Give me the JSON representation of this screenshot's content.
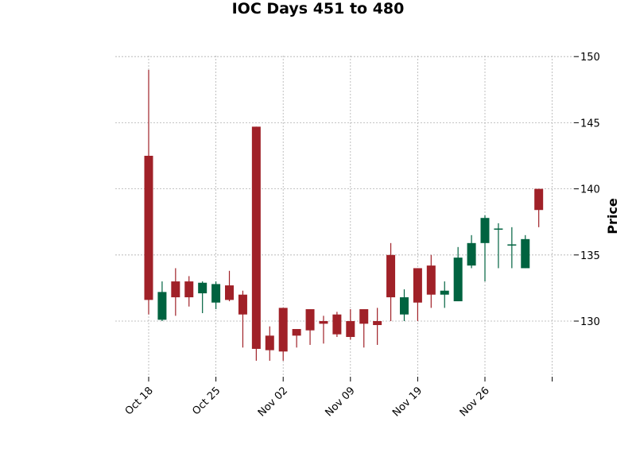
{
  "chart_data": {
    "type": "candlestick",
    "title": "IOC Days 451 to 480",
    "ylabel": "Price",
    "xlabel": "",
    "ylim": [
      126,
      150
    ],
    "yticks": [
      130,
      135,
      140,
      145,
      150
    ],
    "grid": true,
    "colors": {
      "up": "#006340",
      "down": "#a02128",
      "grid": "#b0b0b0"
    },
    "xticks": [
      {
        "index": 0,
        "label": "Oct 18"
      },
      {
        "index": 5,
        "label": "Oct 25"
      },
      {
        "index": 10,
        "label": "Nov 02"
      },
      {
        "index": 15,
        "label": "Nov 09"
      },
      {
        "index": 20,
        "label": "Nov 19"
      },
      {
        "index": 25,
        "label": "Nov 26"
      },
      {
        "index": 30,
        "label": ""
      }
    ],
    "candles": [
      {
        "open": 142.5,
        "high": 149.0,
        "low": 130.5,
        "close": 131.6
      },
      {
        "open": 130.1,
        "high": 133.0,
        "low": 130.0,
        "close": 132.2
      },
      {
        "open": 133.0,
        "high": 134.0,
        "low": 130.4,
        "close": 131.8
      },
      {
        "open": 133.0,
        "high": 133.4,
        "low": 131.1,
        "close": 131.8
      },
      {
        "open": 132.1,
        "high": 133.0,
        "low": 130.6,
        "close": 132.9
      },
      {
        "open": 131.4,
        "high": 133.0,
        "low": 130.9,
        "close": 132.8
      },
      {
        "open": 132.7,
        "high": 133.8,
        "low": 131.5,
        "close": 131.6
      },
      {
        "open": 132.0,
        "high": 132.3,
        "low": 128.0,
        "close": 130.5
      },
      {
        "open": 144.7,
        "high": 144.7,
        "low": 127.0,
        "close": 127.9
      },
      {
        "open": 128.9,
        "high": 129.6,
        "low": 127.0,
        "close": 127.8
      },
      {
        "open": 131.0,
        "high": 131.0,
        "low": 127.0,
        "close": 127.7
      },
      {
        "open": 129.4,
        "high": 129.4,
        "low": 128.0,
        "close": 128.9
      },
      {
        "open": 130.9,
        "high": 130.9,
        "low": 128.2,
        "close": 129.3
      },
      {
        "open": 130.0,
        "high": 130.4,
        "low": 128.3,
        "close": 129.8
      },
      {
        "open": 130.5,
        "high": 130.7,
        "low": 128.8,
        "close": 129.0
      },
      {
        "open": 130.0,
        "high": 130.9,
        "low": 128.6,
        "close": 128.8
      },
      {
        "open": 130.9,
        "high": 130.9,
        "low": 128.0,
        "close": 129.8
      },
      {
        "open": 130.0,
        "high": 131.0,
        "low": 128.2,
        "close": 129.7
      },
      {
        "open": 135.0,
        "high": 135.9,
        "low": 130.0,
        "close": 131.8
      },
      {
        "open": 130.5,
        "high": 132.4,
        "low": 130.0,
        "close": 131.8
      },
      {
        "open": 134.0,
        "high": 134.0,
        "low": 130.0,
        "close": 131.4
      },
      {
        "open": 134.2,
        "high": 135.0,
        "low": 131.0,
        "close": 132.0
      },
      {
        "open": 132.0,
        "high": 133.0,
        "low": 131.0,
        "close": 132.3
      },
      {
        "open": 131.5,
        "high": 135.6,
        "low": 131.5,
        "close": 134.8
      },
      {
        "open": 134.2,
        "high": 136.5,
        "low": 134.0,
        "close": 135.9
      },
      {
        "open": 135.9,
        "high": 138.0,
        "low": 133.0,
        "close": 137.8
      },
      {
        "open": 137.0,
        "high": 137.4,
        "low": 134.0,
        "close": 137.0
      },
      {
        "open": 135.8,
        "high": 137.1,
        "low": 134.0,
        "close": 135.8
      },
      {
        "open": 134.0,
        "high": 136.5,
        "low": 134.0,
        "close": 136.2
      },
      {
        "open": 140.0,
        "high": 140.0,
        "low": 137.1,
        "close": 138.4
      }
    ]
  }
}
